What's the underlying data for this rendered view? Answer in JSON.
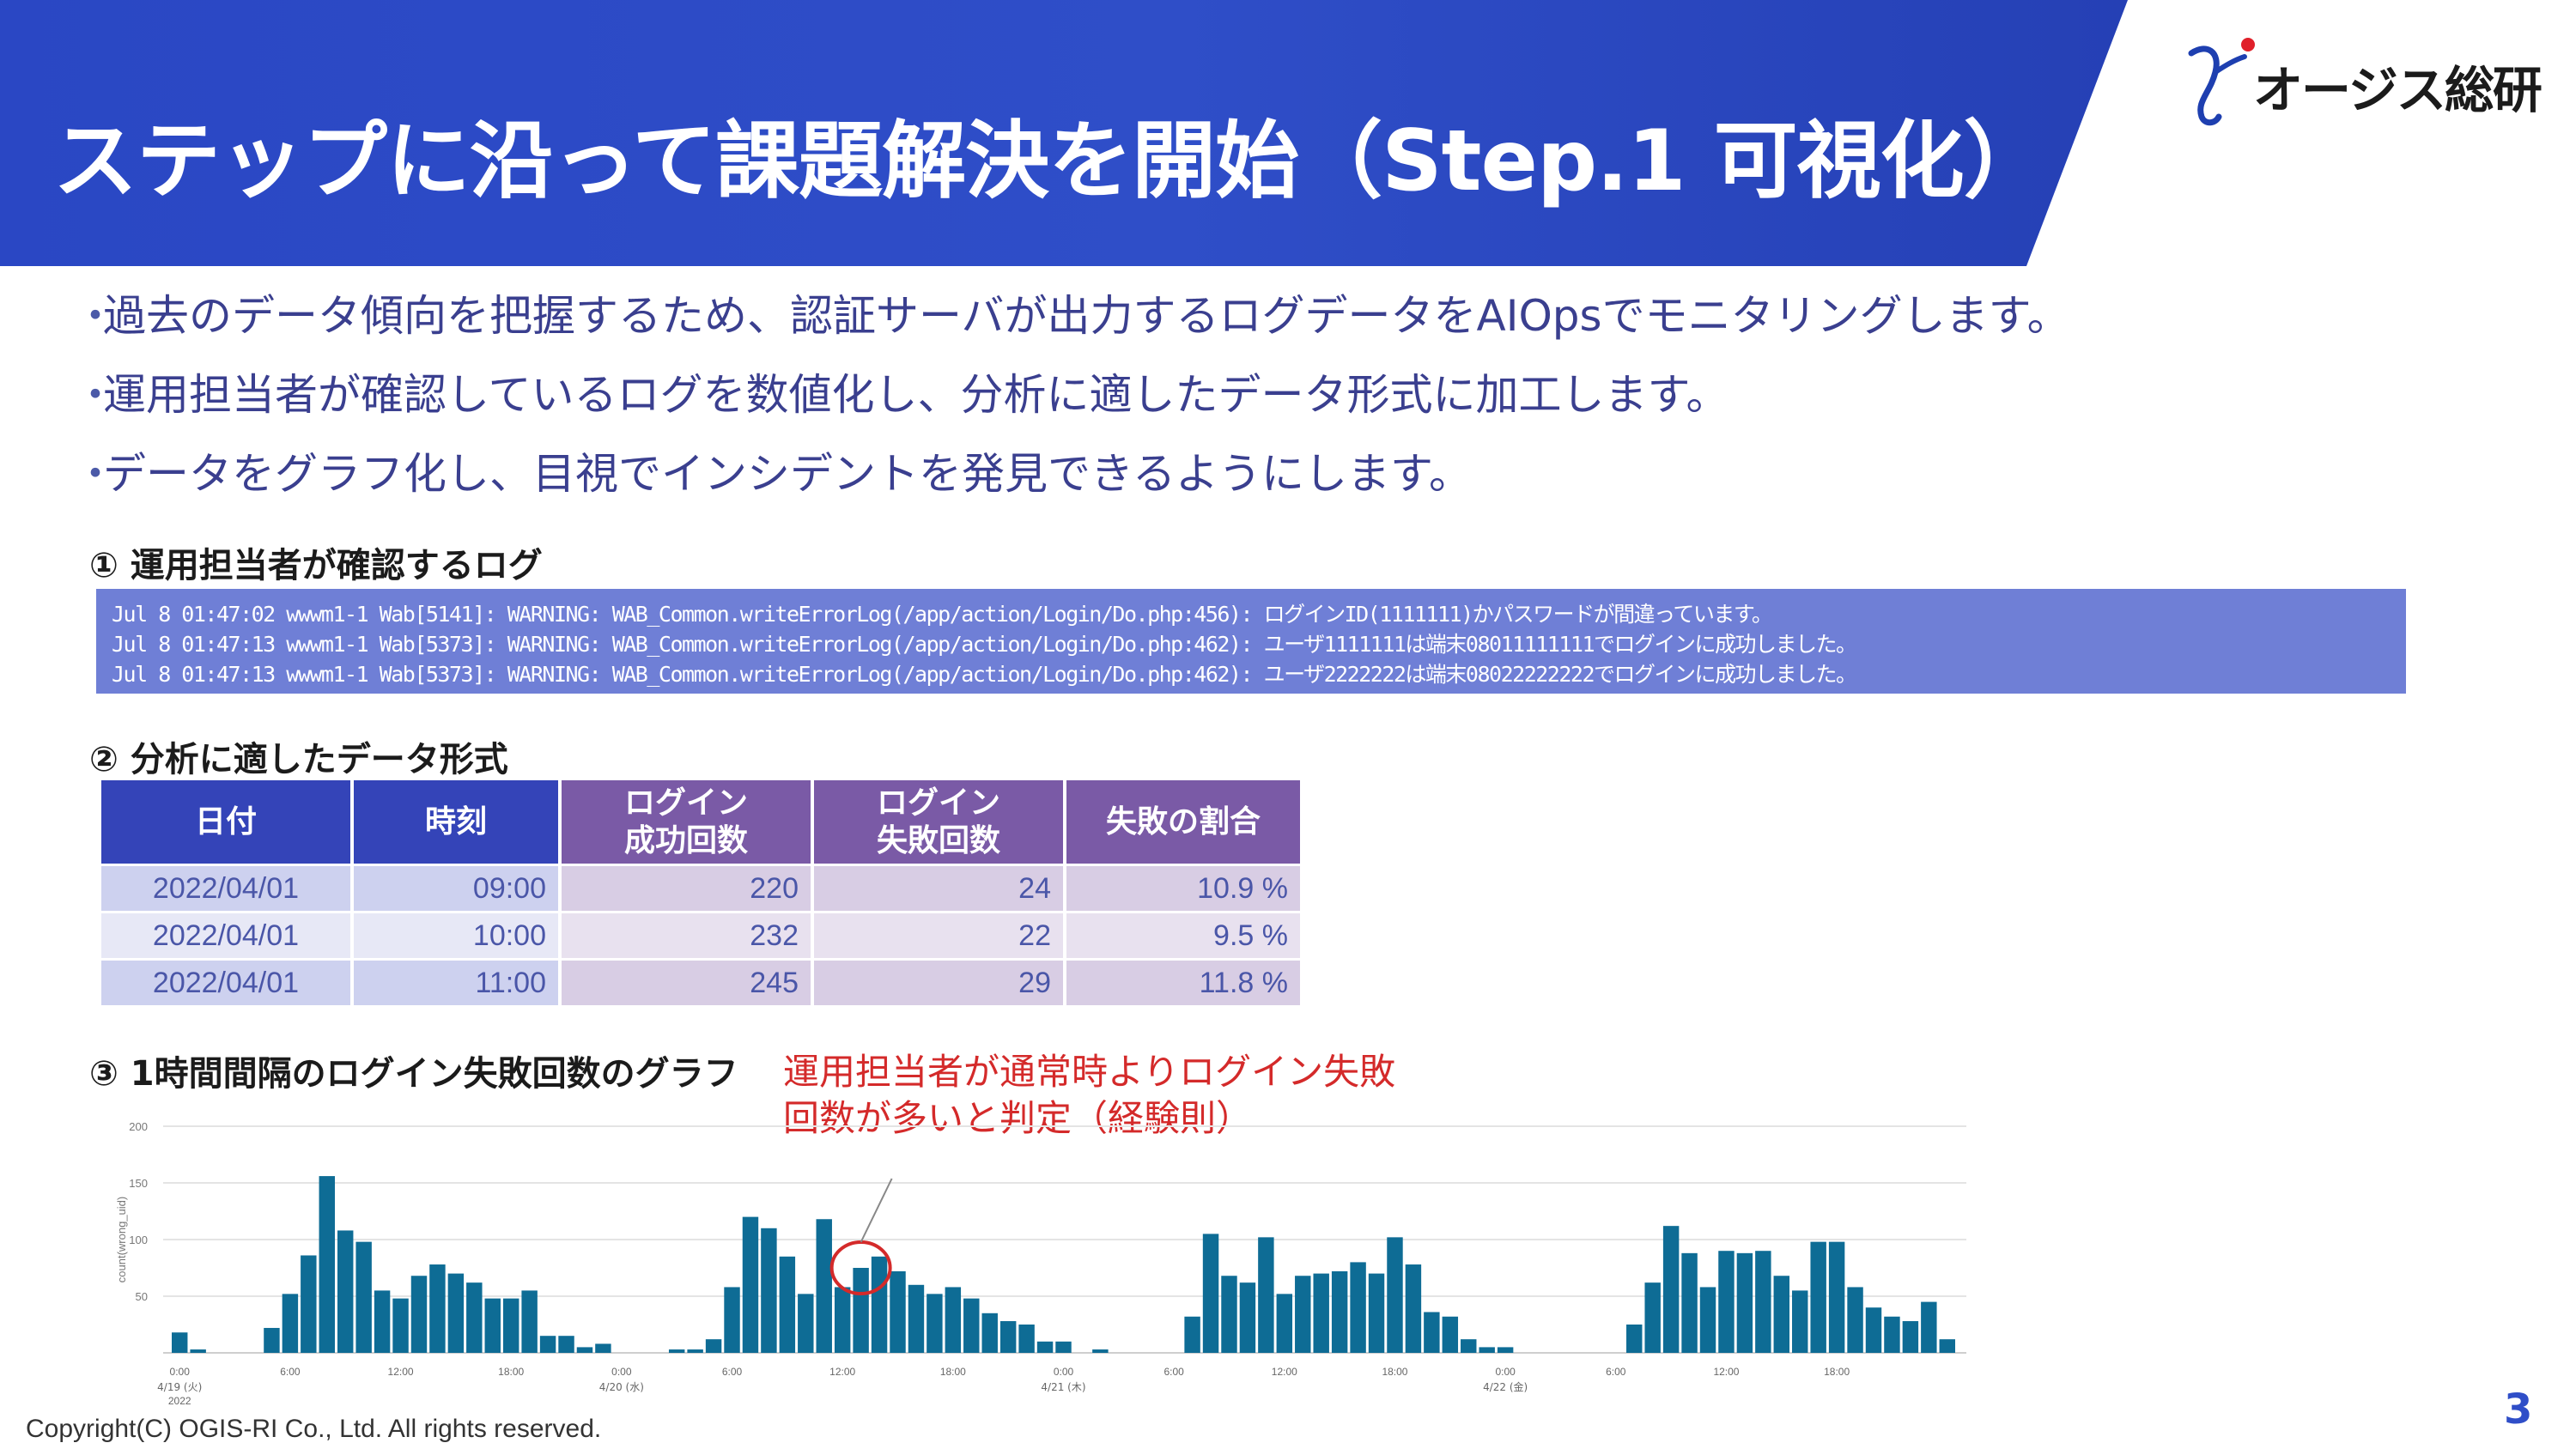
{
  "header": {
    "title": "ステップに沿って課題解決を開始（Step.1 可視化）",
    "logo_text": "オージス総研"
  },
  "bullets": [
    "過去のデータ傾向を把握するため、認証サーバが出力するログデータをAIOpsでモニタリングします。",
    "運用担当者が確認しているログを数値化し、分析に適したデータ形式に加工します。",
    "データをグラフ化し、目視でインシデントを発見できるようにします。"
  ],
  "section1": {
    "title": "① 運用担当者が確認するログ",
    "log_lines": [
      "Jul  8 01:47:02 wwwm1-1 Wab[5141]: WARNING: WAB_Common.writeErrorLog(/app/action/Login/Do.php:456): ログインID(1111111)かパスワードが間違っています。",
      "Jul  8 01:47:13 wwwm1-1 Wab[5373]: WARNING: WAB_Common.writeErrorLog(/app/action/Login/Do.php:462): ユーザ1111111は端末08011111111でログインに成功しました。",
      "Jul  8 01:47:13 wwwm1-1 Wab[5373]: WARNING: WAB_Common.writeErrorLog(/app/action/Login/Do.php:462): ユーザ2222222は端末08022222222でログインに成功しました。"
    ]
  },
  "section2": {
    "title": "② 分析に適したデータ形式",
    "headers": [
      "日付",
      "時刻",
      "ログイン\n成功回数",
      "ログイン\n失敗回数",
      "失敗の割合"
    ],
    "rows": [
      [
        "2022/04/01",
        "09:00",
        "220",
        "24",
        "10.9 %"
      ],
      [
        "2022/04/01",
        "10:00",
        "232",
        "22",
        "9.5 %"
      ],
      [
        "2022/04/01",
        "11:00",
        "245",
        "29",
        "11.8 %"
      ]
    ]
  },
  "section3": {
    "title": "③ 1時間間隔のログイン失敗回数のグラフ",
    "annotation": [
      "運用担当者が通常時よりログイン失敗",
      "回数が多いと判定（経験則）"
    ]
  },
  "chart_data": {
    "type": "bar",
    "ylabel": "count(wrong_uid)",
    "ylim": [
      0,
      200
    ],
    "y_ticks": [
      "200",
      "150",
      "100",
      "50"
    ],
    "x_tick_labels": [
      "0:00",
      "6:00",
      "12:00",
      "18:00",
      "0:00",
      "6:00",
      "12:00",
      "18:00",
      "0:00",
      "6:00",
      "12:00",
      "18:00",
      "0:00",
      "6:00",
      "12:00",
      "18:00"
    ],
    "date_labels": [
      "4/19 (火)",
      "4/20 (水)",
      "4/21 (木)",
      "4/22 (金)"
    ],
    "year_label": "2022",
    "color": "#0e6c95",
    "highlight_color": "#d42a2a",
    "highlight_index": 37,
    "values": [
      18,
      3,
      0,
      0,
      0,
      22,
      52,
      86,
      156,
      108,
      98,
      55,
      48,
      68,
      78,
      70,
      62,
      48,
      48,
      55,
      15,
      15,
      5,
      8,
      0,
      0,
      0,
      3,
      3,
      12,
      58,
      120,
      110,
      85,
      52,
      118,
      58,
      75,
      85,
      72,
      60,
      52,
      58,
      48,
      35,
      28,
      25,
      10,
      10,
      0,
      3,
      0,
      0,
      0,
      0,
      32,
      105,
      68,
      62,
      102,
      52,
      68,
      70,
      72,
      80,
      70,
      102,
      78,
      36,
      32,
      12,
      5,
      5,
      0,
      0,
      0,
      0,
      0,
      0,
      25,
      62,
      112,
      88,
      58,
      90,
      88,
      90,
      68,
      55,
      98,
      98,
      58,
      40,
      32,
      28,
      45,
      12
    ]
  },
  "footer": {
    "copyright": "Copyright(C)  OGIS-RI Co., Ltd. All rights reserved.",
    "page": "3"
  },
  "colors": {
    "banner": "#2f4ec8",
    "log_box": "#6f7fd6",
    "header_blue": "#3444b8",
    "header_purple": "#7a5aa6",
    "accent_red": "#d42a2a"
  }
}
